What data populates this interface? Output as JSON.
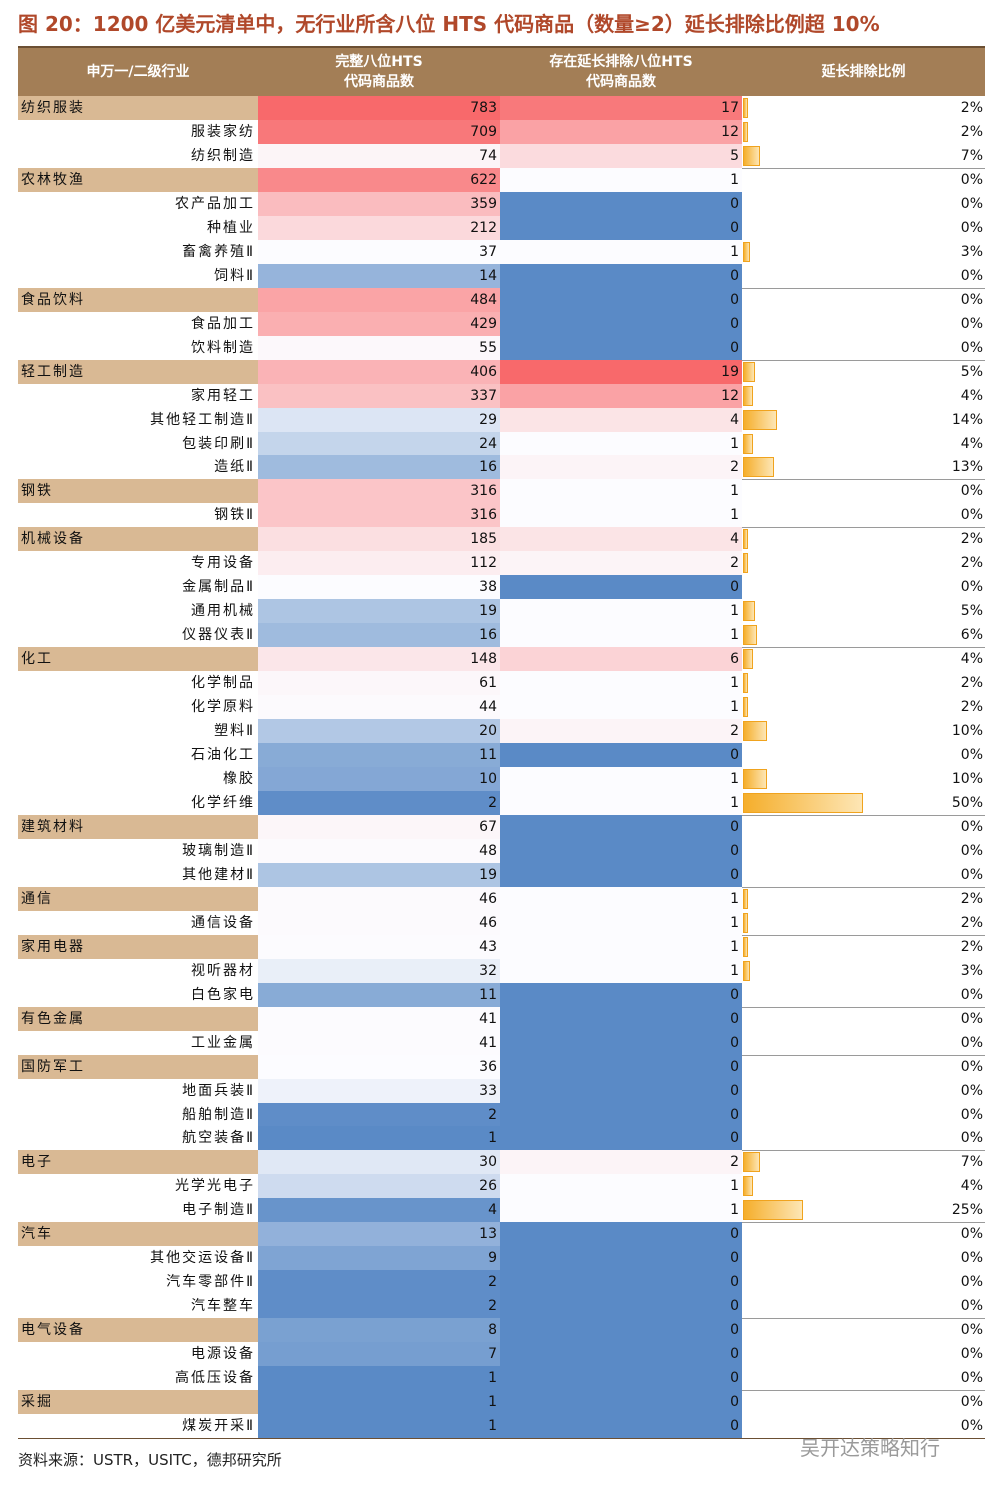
{
  "title": "图 20：1200 亿美元清单中，无行业所含八位 HTS 代码商品（数量≥2）延长排除比例超 10%",
  "table": {
    "headers": [
      "申万一/二级行业",
      "完整八位HTS\n代码商品数",
      "存在延长排除八位HTS\n代码商品数",
      "延长排除比例"
    ],
    "groups": [
      {
        "name": "纺织服装",
        "total": 783,
        "excluded": 17,
        "ratio": "2%",
        "children": [
          {
            "name": "服装家纺",
            "total": 709,
            "excluded": 12,
            "ratio": "2%"
          },
          {
            "name": "纺织制造",
            "total": 74,
            "excluded": 5,
            "ratio": "7%"
          }
        ]
      },
      {
        "name": "农林牧渔",
        "total": 622,
        "excluded": 1,
        "ratio": "0%",
        "children": [
          {
            "name": "农产品加工",
            "total": 359,
            "excluded": 0,
            "ratio": "0%"
          },
          {
            "name": "种植业",
            "total": 212,
            "excluded": 0,
            "ratio": "0%"
          },
          {
            "name": "畜禽养殖Ⅱ",
            "total": 37,
            "excluded": 1,
            "ratio": "3%"
          },
          {
            "name": "饲料Ⅱ",
            "total": 14,
            "excluded": 0,
            "ratio": "0%"
          }
        ]
      },
      {
        "name": "食品饮料",
        "total": 484,
        "excluded": 0,
        "ratio": "0%",
        "children": [
          {
            "name": "食品加工",
            "total": 429,
            "excluded": 0,
            "ratio": "0%"
          },
          {
            "name": "饮料制造",
            "total": 55,
            "excluded": 0,
            "ratio": "0%"
          }
        ]
      },
      {
        "name": "轻工制造",
        "total": 406,
        "excluded": 19,
        "ratio": "5%",
        "children": [
          {
            "name": "家用轻工",
            "total": 337,
            "excluded": 12,
            "ratio": "4%"
          },
          {
            "name": "其他轻工制造Ⅱ",
            "total": 29,
            "excluded": 4,
            "ratio": "14%"
          },
          {
            "name": "包装印刷Ⅱ",
            "total": 24,
            "excluded": 1,
            "ratio": "4%"
          },
          {
            "name": "造纸Ⅱ",
            "total": 16,
            "excluded": 2,
            "ratio": "13%"
          }
        ]
      },
      {
        "name": "钢铁",
        "total": 316,
        "excluded": 1,
        "ratio": "0%",
        "children": [
          {
            "name": "钢铁Ⅱ",
            "total": 316,
            "excluded": 1,
            "ratio": "0%"
          }
        ]
      },
      {
        "name": "机械设备",
        "total": 185,
        "excluded": 4,
        "ratio": "2%",
        "children": [
          {
            "name": "专用设备",
            "total": 112,
            "excluded": 2,
            "ratio": "2%"
          },
          {
            "name": "金属制品Ⅱ",
            "total": 38,
            "excluded": 0,
            "ratio": "0%"
          },
          {
            "name": "通用机械",
            "total": 19,
            "excluded": 1,
            "ratio": "5%"
          },
          {
            "name": "仪器仪表Ⅱ",
            "total": 16,
            "excluded": 1,
            "ratio": "6%"
          }
        ]
      },
      {
        "name": "化工",
        "total": 148,
        "excluded": 6,
        "ratio": "4%",
        "children": [
          {
            "name": "化学制品",
            "total": 61,
            "excluded": 1,
            "ratio": "2%"
          },
          {
            "name": "化学原料",
            "total": 44,
            "excluded": 1,
            "ratio": "2%"
          },
          {
            "name": "塑料Ⅱ",
            "total": 20,
            "excluded": 2,
            "ratio": "10%"
          },
          {
            "name": "石油化工",
            "total": 11,
            "excluded": 0,
            "ratio": "0%"
          },
          {
            "name": "橡胶",
            "total": 10,
            "excluded": 1,
            "ratio": "10%"
          },
          {
            "name": "化学纤维",
            "total": 2,
            "excluded": 1,
            "ratio": "50%"
          }
        ]
      },
      {
        "name": "建筑材料",
        "total": 67,
        "excluded": 0,
        "ratio": "0%",
        "children": [
          {
            "name": "玻璃制造Ⅱ",
            "total": 48,
            "excluded": 0,
            "ratio": "0%"
          },
          {
            "name": "其他建材Ⅱ",
            "total": 19,
            "excluded": 0,
            "ratio": "0%"
          }
        ]
      },
      {
        "name": "通信",
        "total": 46,
        "excluded": 1,
        "ratio": "2%",
        "children": [
          {
            "name": "通信设备",
            "total": 46,
            "excluded": 1,
            "ratio": "2%"
          }
        ]
      },
      {
        "name": "家用电器",
        "total": 43,
        "excluded": 1,
        "ratio": "2%",
        "children": [
          {
            "name": "视听器材",
            "total": 32,
            "excluded": 1,
            "ratio": "3%"
          },
          {
            "name": "白色家电",
            "total": 11,
            "excluded": 0,
            "ratio": "0%"
          }
        ]
      },
      {
        "name": "有色金属",
        "total": 41,
        "excluded": 0,
        "ratio": "0%",
        "children": [
          {
            "name": "工业金属",
            "total": 41,
            "excluded": 0,
            "ratio": "0%"
          }
        ]
      },
      {
        "name": "国防军工",
        "total": 36,
        "excluded": 0,
        "ratio": "0%",
        "children": [
          {
            "name": "地面兵装Ⅱ",
            "total": 33,
            "excluded": 0,
            "ratio": "0%"
          },
          {
            "name": "船舶制造Ⅱ",
            "total": 2,
            "excluded": 0,
            "ratio": "0%"
          },
          {
            "name": "航空装备Ⅱ",
            "total": 1,
            "excluded": 0,
            "ratio": "0%"
          }
        ]
      },
      {
        "name": "电子",
        "total": 30,
        "excluded": 2,
        "ratio": "7%",
        "children": [
          {
            "name": "光学光电子",
            "total": 26,
            "excluded": 1,
            "ratio": "4%"
          },
          {
            "name": "电子制造Ⅱ",
            "total": 4,
            "excluded": 1,
            "ratio": "25%"
          }
        ]
      },
      {
        "name": "汽车",
        "total": 13,
        "excluded": 0,
        "ratio": "0%",
        "children": [
          {
            "name": "其他交运设备Ⅱ",
            "total": 9,
            "excluded": 0,
            "ratio": "0%"
          },
          {
            "name": "汽车零部件Ⅱ",
            "total": 2,
            "excluded": 0,
            "ratio": "0%"
          },
          {
            "name": "汽车整车",
            "total": 2,
            "excluded": 0,
            "ratio": "0%"
          }
        ]
      },
      {
        "name": "电气设备",
        "total": 8,
        "excluded": 0,
        "ratio": "0%",
        "children": [
          {
            "name": "电源设备",
            "total": 7,
            "excluded": 0,
            "ratio": "0%"
          },
          {
            "name": "高低压设备",
            "total": 1,
            "excluded": 0,
            "ratio": "0%"
          }
        ]
      },
      {
        "name": "采掘",
        "total": 1,
        "excluded": 0,
        "ratio": "0%",
        "children": [
          {
            "name": "煤炭开采Ⅱ",
            "total": 1,
            "excluded": 0,
            "ratio": "0%"
          }
        ]
      }
    ]
  },
  "source": "资料来源：USTR，USITC，德邦研究所",
  "watermark": "吴开达策略知行"
}
